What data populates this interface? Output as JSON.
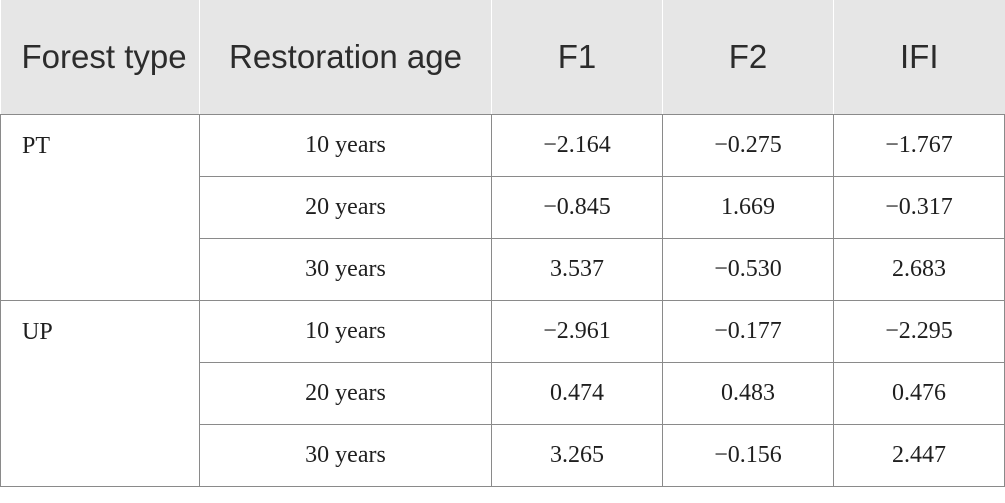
{
  "header": {
    "col_forest_type": "Forest type",
    "col_restoration_age": "Restoration age",
    "col_f1": "F1",
    "col_f2": "F2",
    "col_ifi": "IFI"
  },
  "groups": [
    {
      "type": "PT",
      "rows": [
        {
          "age": "10 years",
          "f1": "−2.164",
          "f2": "−0.275",
          "ifi": "−1.767"
        },
        {
          "age": "20 years",
          "f1": "−0.845",
          "f2": "1.669",
          "ifi": "−0.317"
        },
        {
          "age": "30 years",
          "f1": "3.537",
          "f2": "−0.530",
          "ifi": "2.683"
        }
      ]
    },
    {
      "type": "UP",
      "rows": [
        {
          "age": "10 years",
          "f1": "−2.961",
          "f2": "−0.177",
          "ifi": "−2.295"
        },
        {
          "age": "20 years",
          "f1": "0.474",
          "f2": "0.483",
          "ifi": "0.476"
        },
        {
          "age": "30 years",
          "f1": "3.265",
          "f2": "−0.156",
          "ifi": "2.447"
        }
      ]
    }
  ]
}
